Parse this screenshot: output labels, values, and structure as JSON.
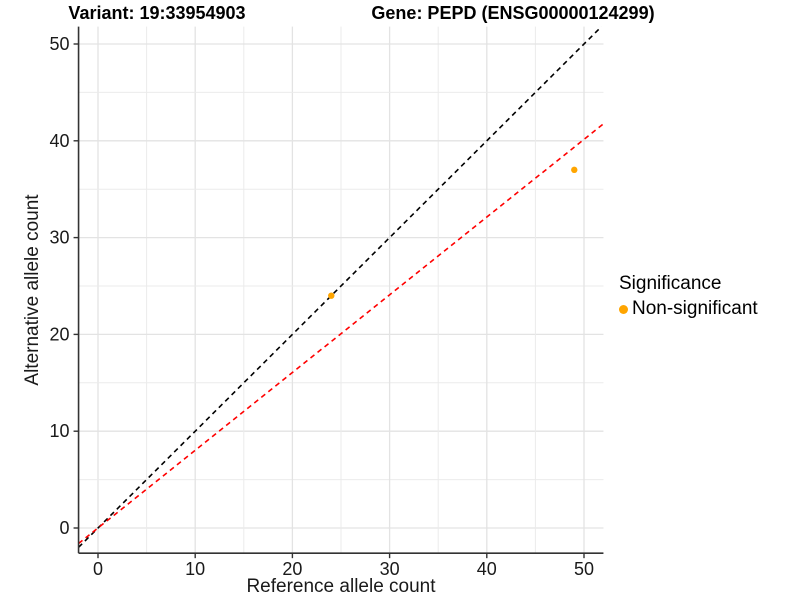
{
  "titles": {
    "variant": "Variant: 19:33954903",
    "gene": "Gene: PEPD (ENSG00000124299)"
  },
  "chart_data": {
    "type": "scatter",
    "title": "Variant: 19:33954903   Gene: PEPD (ENSG00000124299)",
    "xlabel": "Reference allele count",
    "ylabel": "Alternative allele count",
    "xlim": [
      -2,
      52
    ],
    "ylim": [
      -2.6,
      51.8
    ],
    "xticks": [
      0,
      10,
      20,
      30,
      40,
      50
    ],
    "yticks": [
      0,
      10,
      20,
      30,
      40,
      50
    ],
    "grid_step": 5,
    "grid": true,
    "points": [
      {
        "x": 24,
        "y": 24,
        "series": "Non-significant"
      },
      {
        "x": 49,
        "y": 37,
        "series": "Non-significant"
      }
    ],
    "point_color": "#FFA500",
    "lines": [
      {
        "name": "identity",
        "slope": 1,
        "intercept": 0,
        "color": "#000000",
        "dashed": true
      },
      {
        "name": "fit",
        "slope": 0.803,
        "intercept": 0,
        "color": "#FF0000",
        "dashed": true
      }
    ],
    "legend_position": "right"
  },
  "legend": {
    "title": "Significance",
    "items": [
      {
        "label": "Non-significant",
        "color": "#FFA500"
      }
    ]
  },
  "colors": {
    "point_orange": "#FFA500",
    "line_red": "#FF0000",
    "line_black": "#000000",
    "grid_major": "#E3E3E3",
    "grid_minor": "#EBEBEB",
    "axis_line": "#333333"
  }
}
